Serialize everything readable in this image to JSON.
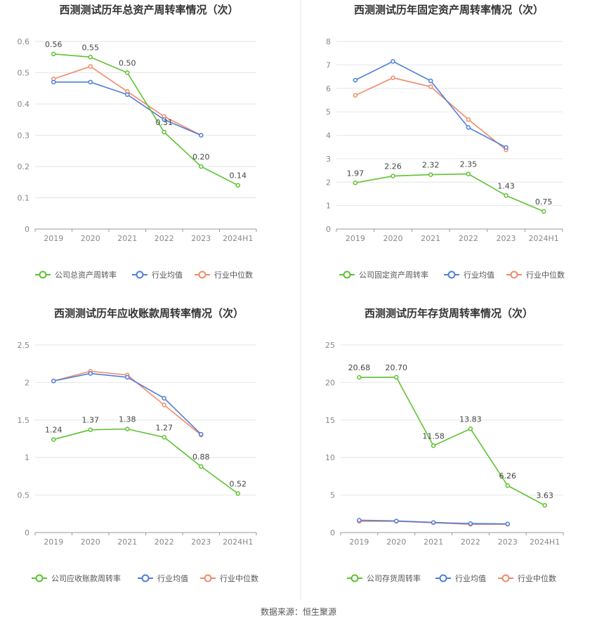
{
  "source_label": "数据来源：恒生聚源",
  "colors": {
    "company": "#5ec232",
    "avg": "#4f7fd6",
    "median": "#f08a6a",
    "grid": "#e6e6e6",
    "axis": "#999999"
  },
  "chart_data": [
    {
      "type": "line",
      "title": "西测测试历年总资产周转率情况（次）",
      "categories": [
        "2019",
        "2020",
        "2021",
        "2022",
        "2023",
        "2024H1"
      ],
      "yticks": [
        "0",
        "0.1",
        "0.2",
        "0.3",
        "0.4",
        "0.5",
        "0.6"
      ],
      "ylim": [
        0,
        0.6
      ],
      "series": [
        {
          "name": "公司总资产周转率",
          "values": [
            0.56,
            0.55,
            0.5,
            0.31,
            0.2,
            0.14
          ],
          "labels": [
            "0.56",
            "0.55",
            "0.50",
            "0.31",
            "0.20",
            "0.14"
          ]
        },
        {
          "name": "行业均值",
          "values": [
            0.47,
            0.47,
            0.43,
            0.35,
            0.3,
            null
          ]
        },
        {
          "name": "行业中位数",
          "values": [
            0.48,
            0.52,
            0.44,
            0.36,
            0.3,
            null
          ]
        }
      ]
    },
    {
      "type": "line",
      "title": "西测测试历年固定资产周转率情况（次）",
      "categories": [
        "2019",
        "2020",
        "2021",
        "2022",
        "2023",
        "2024H1"
      ],
      "yticks": [
        "0",
        "1",
        "2",
        "3",
        "4",
        "5",
        "6",
        "7",
        "8"
      ],
      "ylim": [
        0,
        8
      ],
      "series": [
        {
          "name": "公司固定资产周转率",
          "values": [
            1.97,
            2.26,
            2.32,
            2.35,
            1.43,
            0.75
          ],
          "labels": [
            "1.97",
            "2.26",
            "2.32",
            "2.35",
            "1.43",
            "0.75"
          ]
        },
        {
          "name": "行业均值",
          "values": [
            6.35,
            7.15,
            6.32,
            4.33,
            3.48,
            null
          ]
        },
        {
          "name": "行业中位数",
          "values": [
            5.7,
            6.45,
            6.07,
            4.67,
            3.38,
            null
          ]
        }
      ]
    },
    {
      "type": "line",
      "title": "西测测试历年应收账款周转率情况（次）",
      "categories": [
        "2019",
        "2020",
        "2021",
        "2022",
        "2023",
        "2024H1"
      ],
      "yticks": [
        "0",
        "0.5",
        "1",
        "1.5",
        "2",
        "2.5"
      ],
      "ylim": [
        0,
        2.5
      ],
      "series": [
        {
          "name": "公司应收账款周转率",
          "values": [
            1.24,
            1.37,
            1.38,
            1.27,
            0.88,
            0.52
          ],
          "labels": [
            "1.24",
            "1.37",
            "1.38",
            "1.27",
            "0.88",
            "0.52"
          ]
        },
        {
          "name": "行业均值",
          "values": [
            2.02,
            2.12,
            2.07,
            1.79,
            1.31,
            null
          ]
        },
        {
          "name": "行业中位数",
          "values": [
            2.02,
            2.15,
            2.1,
            1.7,
            1.3,
            null
          ]
        }
      ]
    },
    {
      "type": "line",
      "title": "西测测试历年存货周转率情况（次）",
      "categories": [
        "2019",
        "2020",
        "2021",
        "2022",
        "2023",
        "2024H1"
      ],
      "yticks": [
        "0",
        "5",
        "10",
        "15",
        "20",
        "25"
      ],
      "ylim": [
        0,
        25
      ],
      "series": [
        {
          "name": "公司存货周转率",
          "values": [
            20.68,
            20.7,
            11.58,
            13.83,
            6.26,
            3.63
          ],
          "labels": [
            "20.68",
            "20.70",
            "11.58",
            "13.83",
            "6.26",
            "3.63"
          ]
        },
        {
          "name": "行业均值",
          "values": [
            1.65,
            1.55,
            1.35,
            1.2,
            1.15,
            null
          ]
        },
        {
          "name": "行业中位数",
          "values": [
            1.5,
            1.5,
            1.3,
            1.1,
            1.1,
            null
          ]
        }
      ]
    }
  ]
}
